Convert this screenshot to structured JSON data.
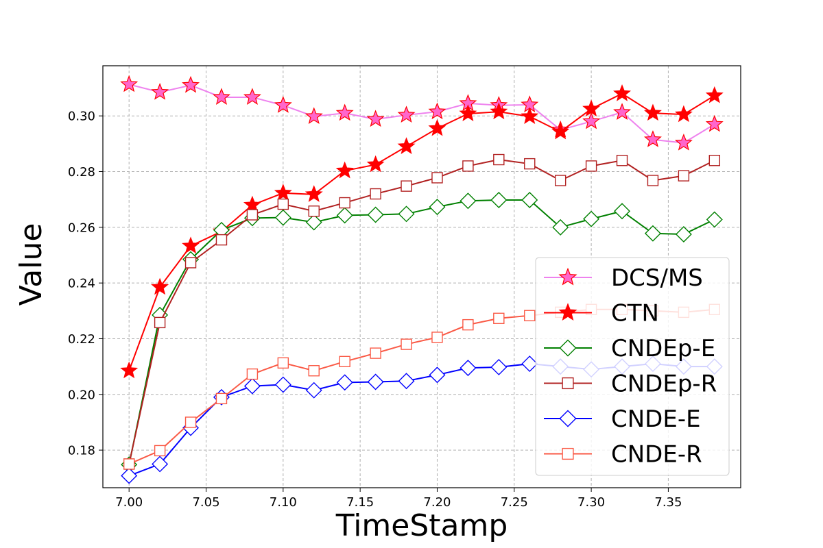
{
  "chart_data": {
    "type": "line",
    "xlabel": "TimeStamp",
    "ylabel": "Value",
    "xlim": [
      6.983,
      7.397
    ],
    "ylim": [
      0.1665,
      0.318
    ],
    "xticks": [
      7.0,
      7.05,
      7.1,
      7.15,
      7.2,
      7.25,
      7.3,
      7.35
    ],
    "yticks": [
      0.18,
      0.2,
      0.22,
      0.24,
      0.26,
      0.28,
      0.3
    ],
    "grid": true,
    "legend_position": "lower-right",
    "x": [
      7.0,
      7.02,
      7.04,
      7.06,
      7.08,
      7.1,
      7.12,
      7.14,
      7.16,
      7.18,
      7.2,
      7.22,
      7.24,
      7.26,
      7.28,
      7.3,
      7.32,
      7.34,
      7.36,
      7.38
    ],
    "series": [
      {
        "name": "DCS/MS",
        "color": "#ee82ee",
        "marker": "star",
        "marker_fill": "#ff66cc",
        "marker_edge": "#ff0000",
        "values": [
          0.3113,
          0.3085,
          0.311,
          0.3067,
          0.3067,
          0.3038,
          0.2998,
          0.301,
          0.2988,
          0.3003,
          0.3015,
          0.3045,
          0.3038,
          0.304,
          0.295,
          0.298,
          0.3013,
          0.2915,
          0.2903,
          0.297
        ]
      },
      {
        "name": "CTN",
        "color": "#ff0000",
        "marker": "star",
        "marker_fill": "#ff0000",
        "marker_edge": "#ff0000",
        "values": [
          0.2085,
          0.2385,
          0.2533,
          0.2585,
          0.268,
          0.2723,
          0.2718,
          0.2803,
          0.2825,
          0.289,
          0.2955,
          0.3008,
          0.3015,
          0.2998,
          0.2943,
          0.3025,
          0.308,
          0.301,
          0.3005,
          0.3073
        ]
      },
      {
        "name": "CNDEp-E",
        "color": "#008000",
        "marker": "diamond",
        "marker_fill": "#ffffff",
        "marker_edge": "#008000",
        "values": [
          0.1748,
          0.2285,
          0.2485,
          0.259,
          0.2633,
          0.2635,
          0.2618,
          0.2643,
          0.2645,
          0.2648,
          0.2673,
          0.2695,
          0.2698,
          0.2698,
          0.26,
          0.263,
          0.2658,
          0.2578,
          0.2575,
          0.2628
        ]
      },
      {
        "name": "CNDEp-R",
        "color": "#b22222",
        "marker": "square",
        "marker_fill": "#ffffff",
        "marker_edge": "#b22222",
        "values": [
          0.175,
          0.2258,
          0.2473,
          0.2555,
          0.2645,
          0.2683,
          0.2658,
          0.2688,
          0.272,
          0.2748,
          0.2778,
          0.282,
          0.2843,
          0.2828,
          0.2768,
          0.282,
          0.284,
          0.2768,
          0.2785,
          0.284
        ]
      },
      {
        "name": "CNDE-E",
        "color": "#0000ff",
        "marker": "diamond",
        "marker_fill": "#ffffff",
        "marker_edge": "#0000ff",
        "values": [
          0.1708,
          0.175,
          0.188,
          0.199,
          0.203,
          0.2035,
          0.2015,
          0.2043,
          0.2045,
          0.2048,
          0.207,
          0.2095,
          0.2098,
          0.211,
          0.21,
          0.209,
          0.21,
          0.211,
          0.21,
          0.21
        ]
      },
      {
        "name": "CNDE-R",
        "color": "#fa5a46",
        "marker": "square",
        "marker_fill": "#ffffff",
        "marker_edge": "#fa5a46",
        "values": [
          0.175,
          0.1798,
          0.19,
          0.1985,
          0.2073,
          0.2113,
          0.2085,
          0.2118,
          0.2148,
          0.218,
          0.2205,
          0.225,
          0.2273,
          0.2283,
          0.2295,
          0.2305,
          0.2305,
          0.23,
          0.2295,
          0.2305
        ]
      }
    ]
  }
}
